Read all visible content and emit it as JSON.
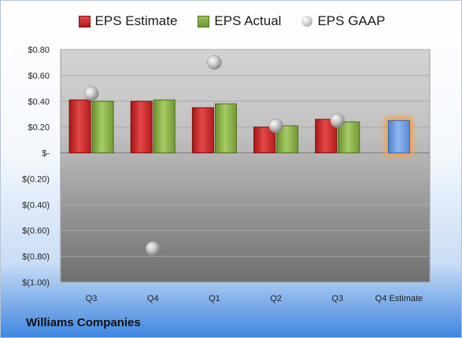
{
  "company": "Williams Companies",
  "legend": {
    "estimate": "EPS Estimate",
    "actual": "EPS Actual",
    "gaap": "EPS GAAP"
  },
  "colors": {
    "estimate": "#cc2a2a",
    "actual": "#86ad45",
    "gaap": "#b8b8b8",
    "future_estimate": "#6b9be0",
    "future_glow": "#f5a04a"
  },
  "chart_data": {
    "type": "bar",
    "categories": [
      "Q3",
      "Q4",
      "Q1",
      "Q2",
      "Q3",
      "Q4 Estimate"
    ],
    "ylim": [
      -1.0,
      0.8
    ],
    "yticks": [
      0.8,
      0.6,
      0.4,
      0.2,
      0,
      -0.2,
      -0.4,
      -0.6,
      -0.8,
      -1.0
    ],
    "ytick_labels": [
      "$0.80",
      "$0.60",
      "$0.40",
      "$0.20",
      "$-",
      "$(0.20)",
      "$(0.40)",
      "$(0.60)",
      "$(0.80)",
      "$(1.00)"
    ],
    "series": [
      {
        "name": "EPS Estimate",
        "values": [
          0.41,
          0.4,
          0.35,
          0.2,
          0.26,
          null
        ]
      },
      {
        "name": "EPS Actual",
        "values": [
          0.4,
          0.41,
          0.38,
          0.21,
          0.24,
          null
        ]
      },
      {
        "name": "EPS GAAP",
        "values": [
          0.46,
          -0.74,
          0.7,
          0.21,
          0.25,
          null
        ]
      }
    ],
    "future_estimate": {
      "category": "Q4 Estimate",
      "value": 0.25
    },
    "grid": true,
    "legend_position": "top"
  }
}
